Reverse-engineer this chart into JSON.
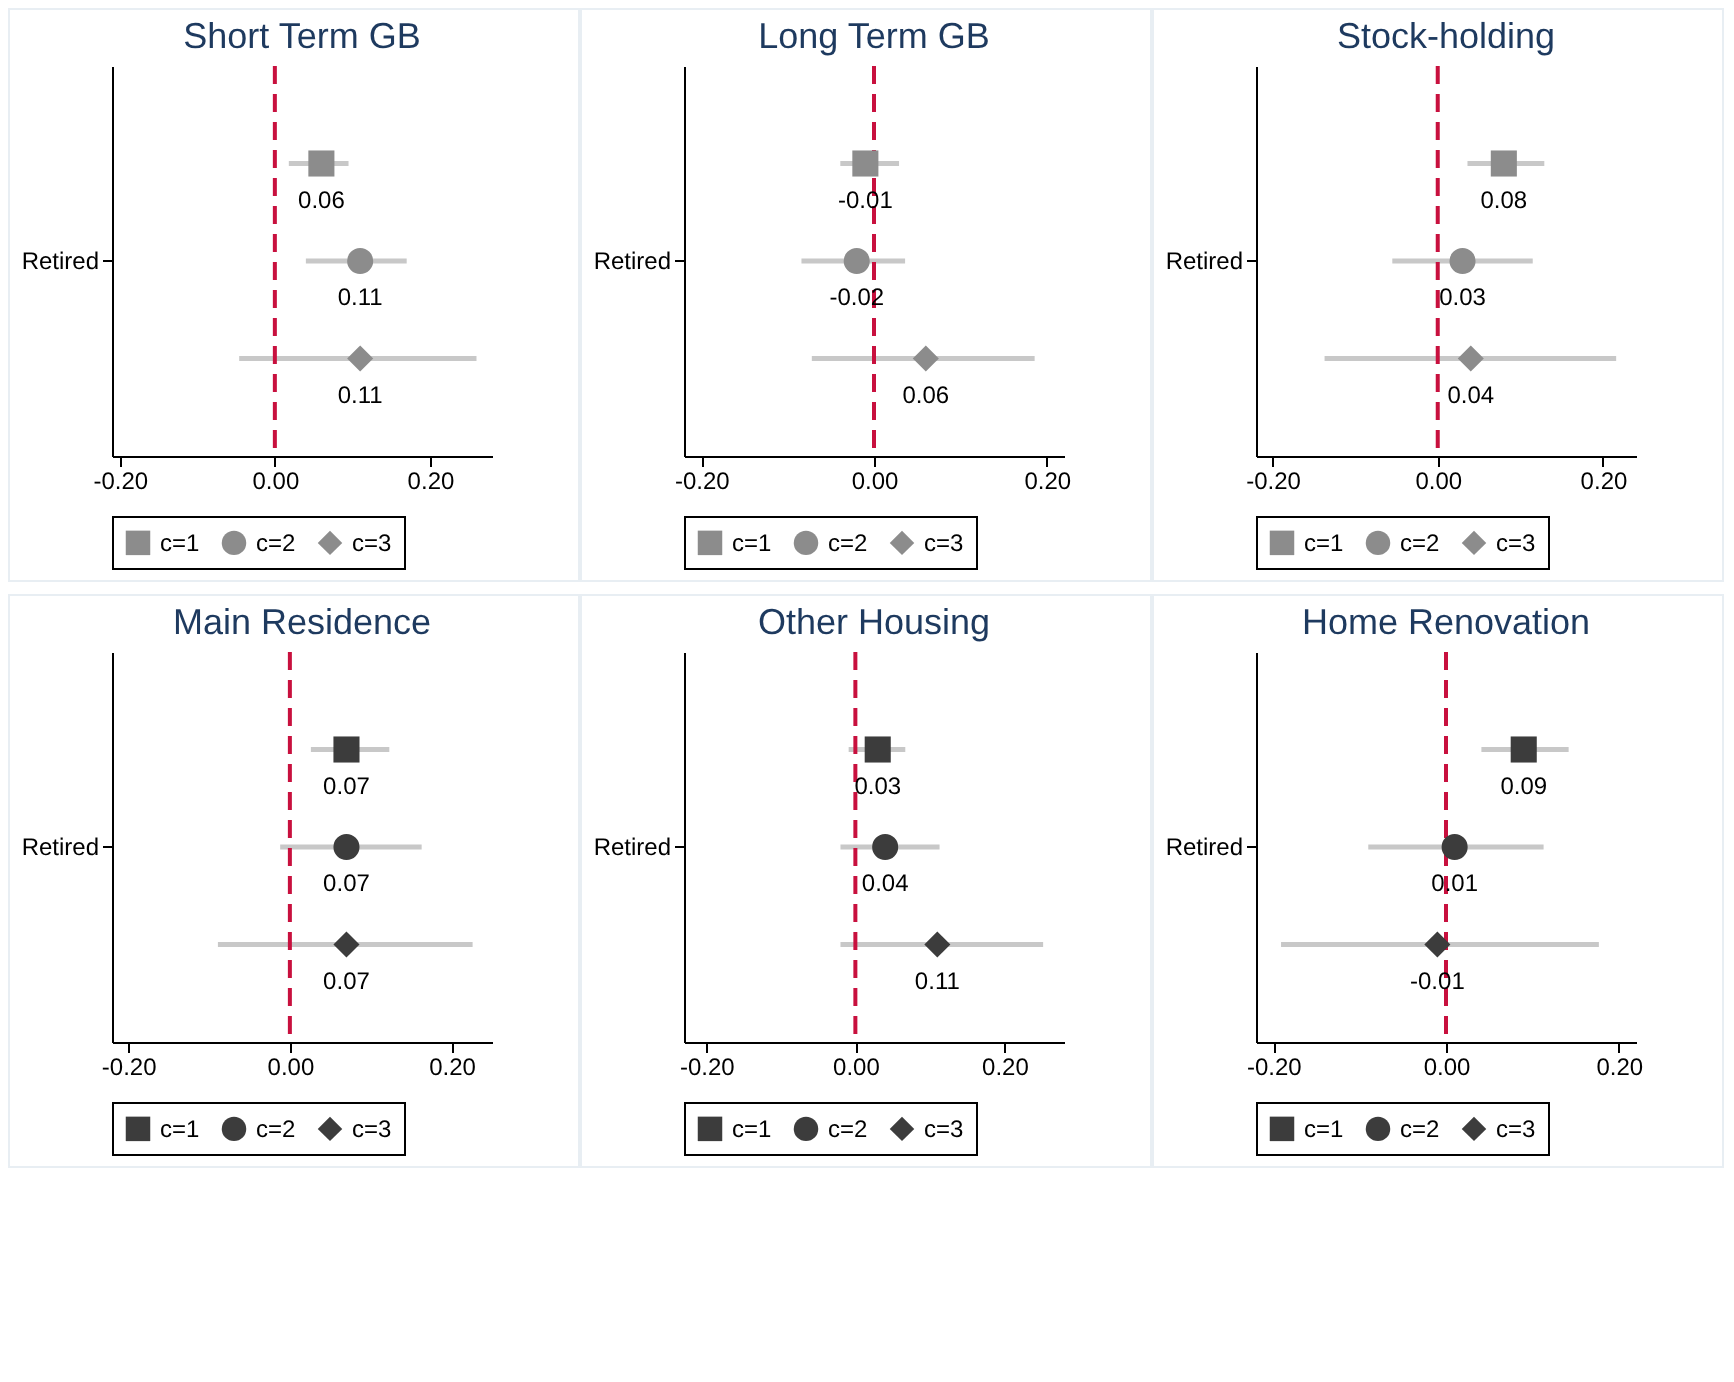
{
  "chart_data": [
    {
      "type": "scatter",
      "title": "Short Term GB",
      "orientation": "horizontal",
      "categories": [
        null,
        "Retired",
        null
      ],
      "xlim": [
        -0.21,
        0.28
      ],
      "xticks": [
        {
          "value": -0.2,
          "label": "-0.20"
        },
        {
          "value": 0,
          "label": "0.00"
        },
        {
          "value": 0.2,
          "label": "0.20"
        }
      ],
      "ref_lines": [
        {
          "axis": "x",
          "value": 0,
          "color": "#c8103e",
          "line_style": "dashed"
        }
      ],
      "data_labels": true,
      "legend": "bottom",
      "series": [
        {
          "name": "c=1",
          "color": "#8c8c8c",
          "marker": "square",
          "values": [
            0.06,
            null,
            null
          ],
          "errors": [
            [
              0.018,
              0.095
            ],
            null,
            null
          ]
        },
        {
          "name": "c=2",
          "color": "#8c8c8c",
          "marker": "circle",
          "values": [
            null,
            0.11,
            null
          ],
          "errors": [
            null,
            [
              0.04,
              0.17
            ],
            null
          ]
        },
        {
          "name": "c=3",
          "color": "#8c8c8c",
          "marker": "diamond",
          "values": [
            null,
            null,
            0.11
          ],
          "errors": [
            null,
            null,
            [
              -0.046,
              0.26
            ]
          ]
        }
      ]
    },
    {
      "type": "scatter",
      "title": "Long Term GB",
      "orientation": "horizontal",
      "categories": [
        null,
        "Retired",
        null
      ],
      "xlim": [
        -0.22,
        0.22
      ],
      "xticks": [
        {
          "value": -0.2,
          "label": "-0.20"
        },
        {
          "value": 0,
          "label": "0.00"
        },
        {
          "value": 0.2,
          "label": "0.20"
        }
      ],
      "ref_lines": [
        {
          "axis": "x",
          "value": 0,
          "color": "#c8103e",
          "line_style": "dashed"
        }
      ],
      "data_labels": true,
      "legend": "bottom",
      "series": [
        {
          "name": "c=1",
          "color": "#8c8c8c",
          "marker": "square",
          "values": [
            -0.01,
            null,
            null
          ],
          "errors": [
            [
              -0.039,
              0.029
            ],
            null,
            null
          ]
        },
        {
          "name": "c=2",
          "color": "#8c8c8c",
          "marker": "circle",
          "values": [
            null,
            -0.02,
            null
          ],
          "errors": [
            null,
            [
              -0.084,
              0.036
            ],
            null
          ]
        },
        {
          "name": "c=3",
          "color": "#8c8c8c",
          "marker": "diamond",
          "values": [
            null,
            null,
            0.06
          ],
          "errors": [
            null,
            null,
            [
              -0.072,
              0.186
            ]
          ]
        }
      ]
    },
    {
      "type": "scatter",
      "title": "Stock-holding",
      "orientation": "horizontal",
      "categories": [
        null,
        "Retired",
        null
      ],
      "xlim": [
        -0.22,
        0.24
      ],
      "xticks": [
        {
          "value": -0.2,
          "label": "-0.20"
        },
        {
          "value": 0,
          "label": "0.00"
        },
        {
          "value": 0.2,
          "label": "0.20"
        }
      ],
      "ref_lines": [
        {
          "axis": "x",
          "value": 0,
          "color": "#c8103e",
          "line_style": "dashed"
        }
      ],
      "data_labels": true,
      "legend": "bottom",
      "series": [
        {
          "name": "c=1",
          "color": "#8c8c8c",
          "marker": "square",
          "values": [
            0.08,
            null,
            null
          ],
          "errors": [
            [
              0.036,
              0.129
            ],
            null,
            null
          ]
        },
        {
          "name": "c=2",
          "color": "#8c8c8c",
          "marker": "circle",
          "values": [
            null,
            0.03,
            null
          ],
          "errors": [
            null,
            [
              -0.055,
              0.115
            ],
            null
          ]
        },
        {
          "name": "c=3",
          "color": "#8c8c8c",
          "marker": "diamond",
          "values": [
            null,
            null,
            0.04
          ],
          "errors": [
            null,
            null,
            [
              -0.137,
              0.216
            ]
          ]
        }
      ]
    },
    {
      "type": "scatter",
      "title": "Main Residence",
      "orientation": "horizontal",
      "categories": [
        null,
        "Retired",
        null
      ],
      "xlim": [
        -0.22,
        0.25
      ],
      "xticks": [
        {
          "value": -0.2,
          "label": "-0.20"
        },
        {
          "value": 0,
          "label": "0.00"
        },
        {
          "value": 0.2,
          "label": "0.20"
        }
      ],
      "ref_lines": [
        {
          "axis": "x",
          "value": 0,
          "color": "#c8103e",
          "line_style": "dashed"
        }
      ],
      "data_labels": true,
      "legend": "bottom",
      "series": [
        {
          "name": "c=1",
          "color": "#3c3c3c",
          "marker": "square",
          "values": [
            0.07,
            null,
            null
          ],
          "errors": [
            [
              0.026,
              0.123
            ],
            null,
            null
          ]
        },
        {
          "name": "c=2",
          "color": "#3c3c3c",
          "marker": "circle",
          "values": [
            null,
            0.07,
            null
          ],
          "errors": [
            null,
            [
              -0.012,
              0.163
            ],
            null
          ]
        },
        {
          "name": "c=3",
          "color": "#3c3c3c",
          "marker": "diamond",
          "values": [
            null,
            null,
            0.07
          ],
          "errors": [
            null,
            null,
            [
              -0.089,
              0.226
            ]
          ]
        }
      ]
    },
    {
      "type": "scatter",
      "title": "Other Housing",
      "orientation": "horizontal",
      "categories": [
        null,
        "Retired",
        null
      ],
      "xlim": [
        -0.23,
        0.28
      ],
      "xticks": [
        {
          "value": -0.2,
          "label": "-0.20"
        },
        {
          "value": 0,
          "label": "0.00"
        },
        {
          "value": 0.2,
          "label": "0.20"
        }
      ],
      "ref_lines": [
        {
          "axis": "x",
          "value": 0,
          "color": "#c8103e",
          "line_style": "dashed"
        }
      ],
      "data_labels": true,
      "legend": "bottom",
      "series": [
        {
          "name": "c=1",
          "color": "#3c3c3c",
          "marker": "square",
          "values": [
            0.03,
            null,
            null
          ],
          "errors": [
            [
              -0.009,
              0.067
            ],
            null,
            null
          ]
        },
        {
          "name": "c=2",
          "color": "#3c3c3c",
          "marker": "circle",
          "values": [
            null,
            0.04,
            null
          ],
          "errors": [
            null,
            [
              -0.02,
              0.113
            ],
            null
          ]
        },
        {
          "name": "c=3",
          "color": "#3c3c3c",
          "marker": "diamond",
          "values": [
            null,
            null,
            0.11
          ],
          "errors": [
            null,
            null,
            [
              -0.02,
              0.252
            ]
          ]
        }
      ]
    },
    {
      "type": "scatter",
      "title": "Home Renovation",
      "orientation": "horizontal",
      "categories": [
        null,
        "Retired",
        null
      ],
      "xlim": [
        -0.22,
        0.22
      ],
      "xticks": [
        {
          "value": -0.2,
          "label": "-0.20"
        },
        {
          "value": 0,
          "label": "0.00"
        },
        {
          "value": 0.2,
          "label": "0.20"
        }
      ],
      "ref_lines": [
        {
          "axis": "x",
          "value": 0,
          "color": "#c8103e",
          "line_style": "dashed"
        }
      ],
      "data_labels": true,
      "legend": "bottom",
      "series": [
        {
          "name": "c=1",
          "color": "#3c3c3c",
          "marker": "square",
          "values": [
            0.09,
            null,
            null
          ],
          "errors": [
            [
              0.041,
              0.142
            ],
            null,
            null
          ]
        },
        {
          "name": "c=2",
          "color": "#3c3c3c",
          "marker": "circle",
          "values": [
            null,
            0.01,
            null
          ],
          "errors": [
            null,
            [
              -0.09,
              0.113
            ],
            null
          ]
        },
        {
          "name": "c=3",
          "color": "#3c3c3c",
          "marker": "diamond",
          "values": [
            null,
            null,
            -0.01
          ],
          "errors": [
            null,
            null,
            [
              -0.191,
              0.177
            ]
          ]
        }
      ]
    }
  ]
}
